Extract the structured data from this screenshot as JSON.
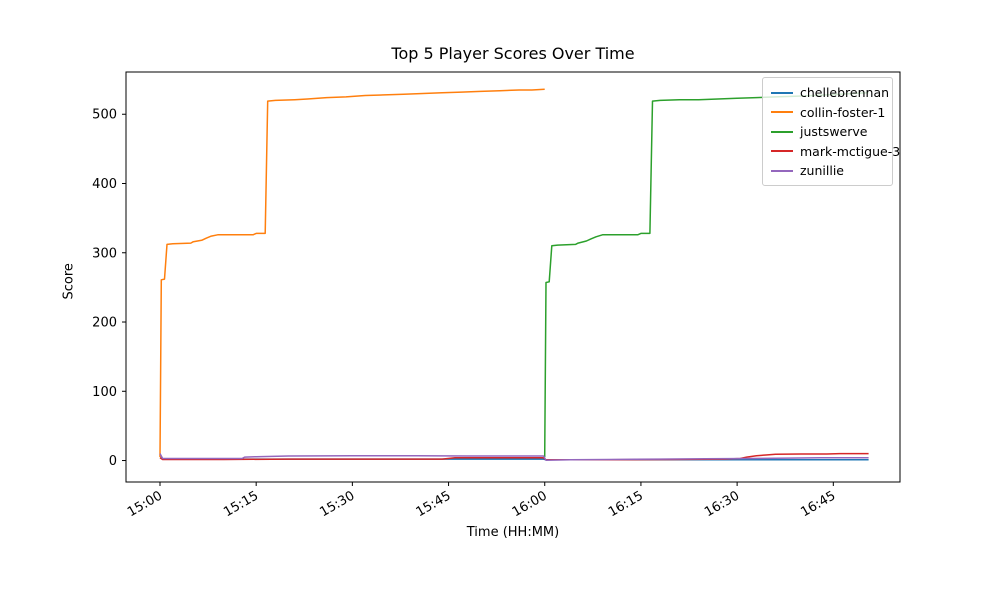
{
  "chart_data": {
    "type": "line",
    "title": "Top 5 Player Scores Over Time",
    "xlabel": "Time (HH:MM)",
    "ylabel": "Score",
    "grid": false,
    "legend_position": "upper right",
    "x_unit": "minutes_after_15:00",
    "xlim": [
      -5.3,
      115.4
    ],
    "ylim": [
      -31,
      561
    ],
    "x_ticks": [
      {
        "t": 0,
        "label": "15:00"
      },
      {
        "t": 15,
        "label": "15:15"
      },
      {
        "t": 30,
        "label": "15:30"
      },
      {
        "t": 45,
        "label": "15:45"
      },
      {
        "t": 60,
        "label": "16:00"
      },
      {
        "t": 75,
        "label": "16:15"
      },
      {
        "t": 90,
        "label": "16:30"
      },
      {
        "t": 105,
        "label": "16:45"
      }
    ],
    "y_ticks": [
      0,
      100,
      200,
      300,
      400,
      500
    ],
    "series": [
      {
        "name": "chellebrennan",
        "color": "#1f77b4",
        "points": [
          [
            0,
            8
          ],
          [
            0.4,
            2
          ],
          [
            30,
            2
          ],
          [
            59.8,
            2
          ],
          [
            60.2,
            1
          ],
          [
            110.5,
            1
          ]
        ]
      },
      {
        "name": "collin-foster-1",
        "color": "#ff7f0e",
        "points": [
          [
            0,
            5
          ],
          [
            0.2,
            261
          ],
          [
            0.7,
            262
          ],
          [
            1.1,
            312
          ],
          [
            2,
            313
          ],
          [
            4.8,
            314
          ],
          [
            5.2,
            316
          ],
          [
            6.5,
            318
          ],
          [
            7.2,
            321
          ],
          [
            8,
            324
          ],
          [
            9,
            326
          ],
          [
            14.5,
            326
          ],
          [
            15,
            328
          ],
          [
            16.4,
            328
          ],
          [
            16.8,
            519
          ],
          [
            18,
            520
          ],
          [
            21,
            521
          ],
          [
            23,
            522
          ],
          [
            26,
            524
          ],
          [
            29,
            525
          ],
          [
            32,
            527
          ],
          [
            35,
            528
          ],
          [
            38,
            529
          ],
          [
            41,
            530
          ],
          [
            44,
            531
          ],
          [
            47,
            532
          ],
          [
            50,
            533
          ],
          [
            53,
            534
          ],
          [
            56,
            535
          ],
          [
            58,
            535
          ],
          [
            60,
            536
          ]
        ]
      },
      {
        "name": "justswerve",
        "color": "#2ca02c",
        "points": [
          [
            60,
            5
          ],
          [
            60.2,
            257
          ],
          [
            60.7,
            258
          ],
          [
            61.1,
            310
          ],
          [
            62,
            311
          ],
          [
            64.8,
            312
          ],
          [
            65.2,
            314
          ],
          [
            66.5,
            317
          ],
          [
            67.2,
            320
          ],
          [
            68,
            323
          ],
          [
            69,
            326
          ],
          [
            74.5,
            326
          ],
          [
            75,
            328
          ],
          [
            76.4,
            328
          ],
          [
            76.8,
            519
          ],
          [
            78,
            520
          ],
          [
            81,
            521
          ],
          [
            84,
            521
          ],
          [
            87,
            522
          ],
          [
            90,
            523
          ],
          [
            93,
            524
          ],
          [
            96,
            525
          ],
          [
            99,
            526
          ],
          [
            102,
            527
          ],
          [
            104,
            528
          ],
          [
            106,
            529
          ],
          [
            108,
            530
          ],
          [
            110.5,
            531
          ]
        ]
      },
      {
        "name": "mark-mctigue-3",
        "color": "#d62728",
        "points": [
          [
            0,
            4
          ],
          [
            0.4,
            1.5
          ],
          [
            10,
            1.5
          ],
          [
            20,
            2
          ],
          [
            30,
            2
          ],
          [
            44,
            2
          ],
          [
            46,
            4
          ],
          [
            59.8,
            4
          ],
          [
            60.2,
            1
          ],
          [
            70,
            1
          ],
          [
            80,
            1.5
          ],
          [
            88,
            2
          ],
          [
            90.5,
            3
          ],
          [
            91.5,
            5
          ],
          [
            93,
            7
          ],
          [
            94.5,
            8
          ],
          [
            96,
            9
          ],
          [
            100,
            9.5
          ],
          [
            104,
            9.5
          ],
          [
            106,
            10
          ],
          [
            110.5,
            10
          ]
        ]
      },
      {
        "name": "zunillie",
        "color": "#9467bd",
        "points": [
          [
            0,
            10
          ],
          [
            0.4,
            3
          ],
          [
            5,
            3
          ],
          [
            12.8,
            3
          ],
          [
            13.2,
            5
          ],
          [
            15,
            5.5
          ],
          [
            20,
            6.5
          ],
          [
            30,
            7
          ],
          [
            40,
            7
          ],
          [
            48,
            6.5
          ],
          [
            59.8,
            6.5
          ],
          [
            60.2,
            0.5
          ],
          [
            64,
            1
          ],
          [
            70,
            1.5
          ],
          [
            78,
            2
          ],
          [
            85,
            2.5
          ],
          [
            92,
            3
          ],
          [
            98,
            3.5
          ],
          [
            103,
            4
          ],
          [
            110.5,
            4
          ]
        ]
      }
    ]
  }
}
